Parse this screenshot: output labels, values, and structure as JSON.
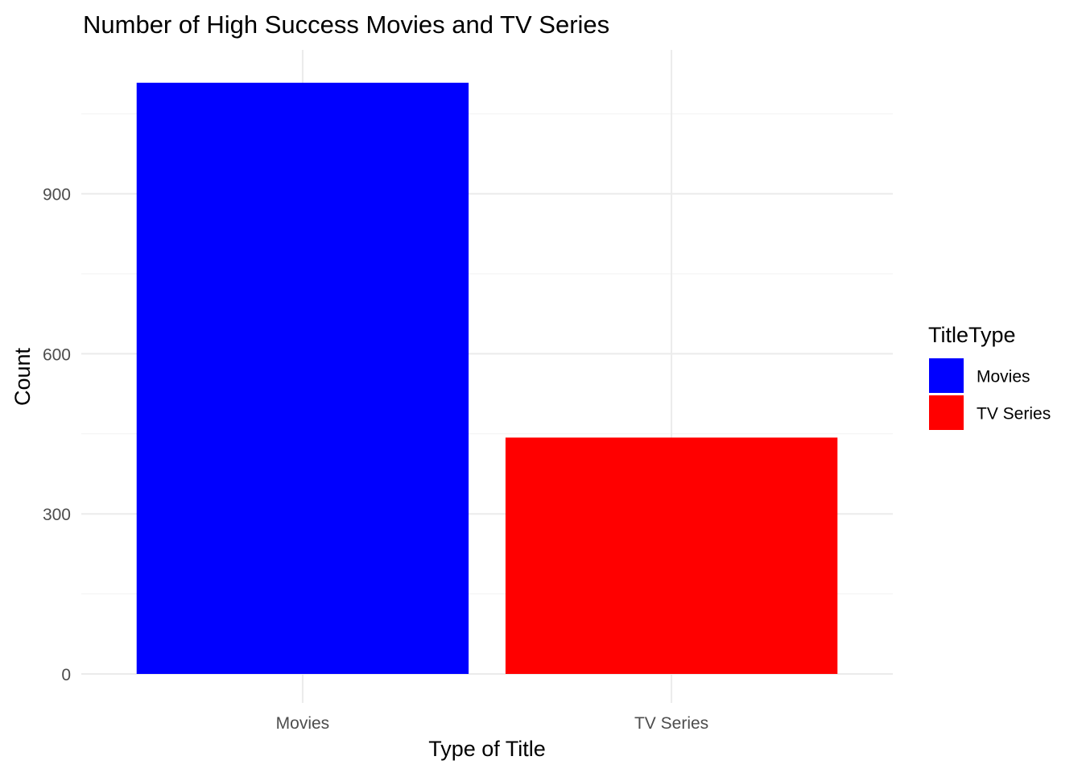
{
  "chart_data": {
    "type": "bar",
    "title": "Number of High Success Movies and TV Series",
    "xlabel": "Type of Title",
    "ylabel": "Count",
    "categories": [
      "Movies",
      "TV Series"
    ],
    "values": [
      1108,
      443
    ],
    "ylim": [
      0,
      1165
    ],
    "yticks": [
      0,
      300,
      600,
      900
    ],
    "grid": true,
    "legend": {
      "title": "TitleType",
      "placement": "right",
      "entries": [
        {
          "label": "Movies",
          "color": "#0000ff"
        },
        {
          "label": "TV Series",
          "color": "#ff0000"
        }
      ]
    },
    "colors": [
      "#0000ff",
      "#ff0000"
    ]
  }
}
